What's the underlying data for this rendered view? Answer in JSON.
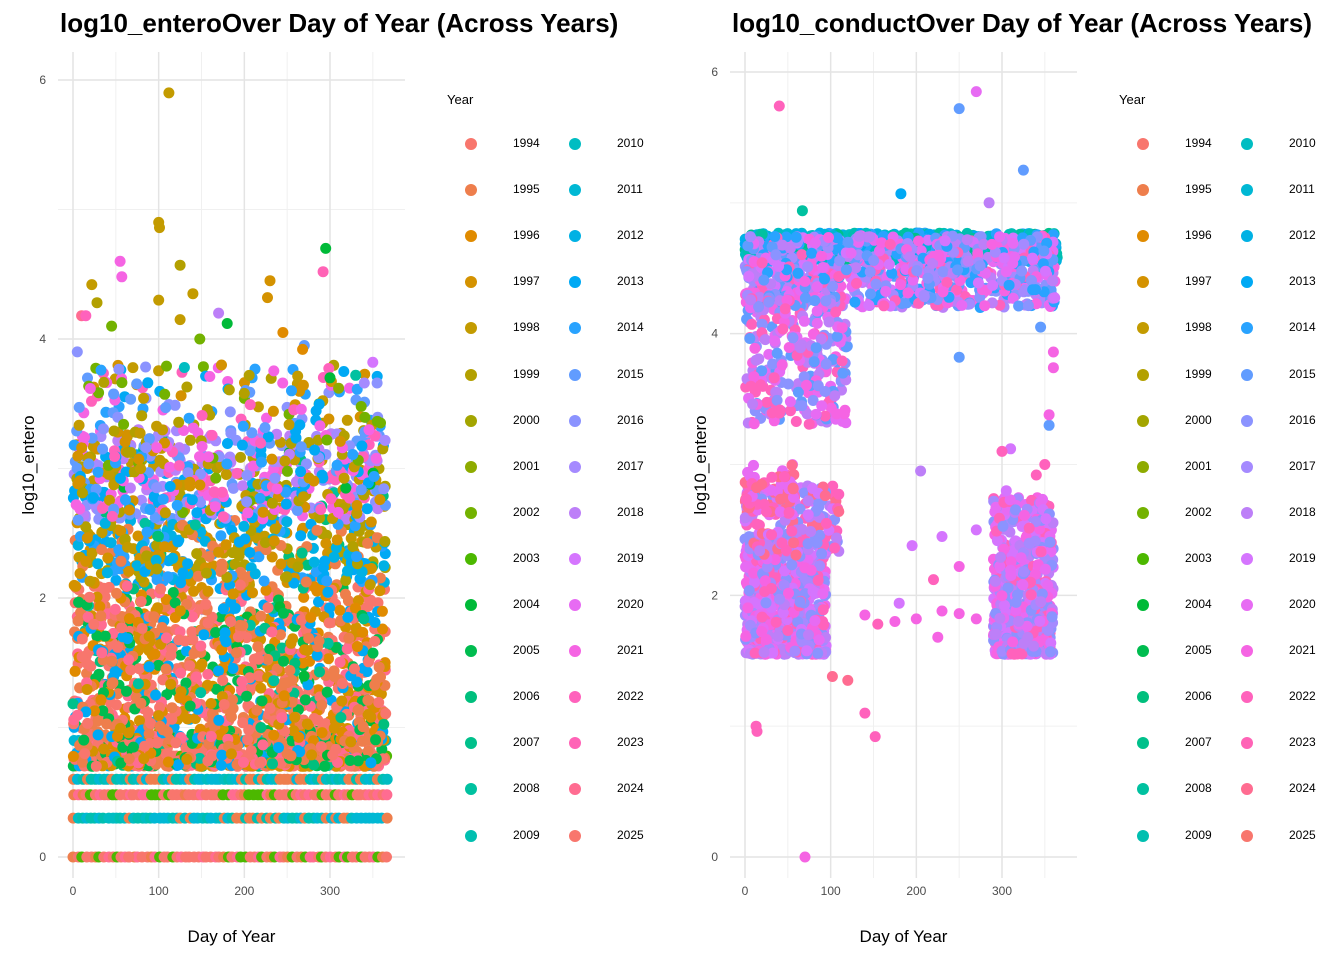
{
  "year_colors": {
    "1994": "#F8766D",
    "1995": "#EE7E4C",
    "1996": "#E08B00",
    "1997": "#D49200",
    "1998": "#C39B00",
    "1999": "#B3A000",
    "2000": "#A3A500",
    "2001": "#8EAB00",
    "2002": "#73B200",
    "2003": "#4CB800",
    "2004": "#00BA38",
    "2005": "#00BC4F",
    "2006": "#00BF7D",
    "2007": "#00C08B",
    "2008": "#00C1A0",
    "2009": "#00BFB0",
    "2010": "#00BDC2",
    "2011": "#00B8D4",
    "2012": "#00B1E4",
    "2013": "#00A9F4",
    "2014": "#29A3FF",
    "2015": "#619CFF",
    "2016": "#8B93FF",
    "2017": "#A58AFF",
    "2018": "#BD7FF8",
    "2019": "#D575FE",
    "2020": "#E76BF3",
    "2021": "#F564E3",
    "2022": "#FF62BC",
    "2023": "#FF63B6",
    "2024": "#FF6C91",
    "2025": "#F8766D"
  },
  "chart_data": [
    {
      "type": "scatter",
      "title": "log10_enteroOver Day of Year (Across Years)",
      "xlabel": "Day of Year",
      "ylabel": "log10_entero",
      "xlim": [
        -5,
        370
      ],
      "ylim": [
        -0.1,
        6.2
      ],
      "xticks": [
        0,
        100,
        200,
        300
      ],
      "yticks": [
        0,
        2,
        4,
        6
      ],
      "grid": true,
      "legend_title": "Year",
      "legend_placement": "right",
      "legend_years": [
        "1994",
        "1995",
        "1996",
        "1997",
        "1998",
        "1999",
        "2000",
        "2001",
        "2002",
        "2003",
        "2004",
        "2005",
        "2006",
        "2007",
        "2008",
        "2009",
        "2010",
        "2011",
        "2012",
        "2013",
        "2014",
        "2015",
        "2016",
        "2017",
        "2018",
        "2019",
        "2020",
        "2021",
        "2022",
        "2023",
        "2024",
        "2025"
      ],
      "points": [
        {
          "x": 112,
          "y": 5.9,
          "year": "1998"
        },
        {
          "x": 100,
          "y": 4.9,
          "year": "1998"
        },
        {
          "x": 101,
          "y": 4.86,
          "year": "1998"
        },
        {
          "x": 295,
          "y": 4.7,
          "year": "2004"
        },
        {
          "x": 292,
          "y": 4.52,
          "year": "2023"
        },
        {
          "x": 55,
          "y": 4.6,
          "year": "2021"
        },
        {
          "x": 57,
          "y": 4.48,
          "year": "2021"
        },
        {
          "x": 125,
          "y": 4.57,
          "year": "1999"
        },
        {
          "x": 230,
          "y": 4.45,
          "year": "1997"
        },
        {
          "x": 227,
          "y": 4.32,
          "year": "1997"
        },
        {
          "x": 22,
          "y": 4.42,
          "year": "1998"
        },
        {
          "x": 28,
          "y": 4.28,
          "year": "1999"
        },
        {
          "x": 140,
          "y": 4.35,
          "year": "1998"
        },
        {
          "x": 100,
          "y": 4.3,
          "year": "1998"
        },
        {
          "x": 10,
          "y": 4.18,
          "year": "2024"
        },
        {
          "x": 15,
          "y": 4.18,
          "year": "2022"
        },
        {
          "x": 180,
          "y": 4.12,
          "year": "2004"
        },
        {
          "x": 170,
          "y": 4.2,
          "year": "2018"
        },
        {
          "x": 125,
          "y": 4.15,
          "year": "1998"
        },
        {
          "x": 45,
          "y": 4.1,
          "year": "2002"
        },
        {
          "x": 245,
          "y": 4.05,
          "year": "1996"
        },
        {
          "x": 148,
          "y": 4.0,
          "year": "2002"
        },
        {
          "x": 270,
          "y": 3.95,
          "year": "2015"
        },
        {
          "x": 268,
          "y": 3.92,
          "year": "1996"
        },
        {
          "x": 350,
          "y": 3.82,
          "year": "2019"
        },
        {
          "x": 5,
          "y": 3.9,
          "year": "2016"
        },
        {
          "x": 130,
          "y": 3.78,
          "year": "2010"
        },
        {
          "x": 200,
          "y": 3.58,
          "year": "1999"
        },
        {
          "x": 255,
          "y": 3.6,
          "year": "2014"
        },
        {
          "x": 330,
          "y": 3.72,
          "year": "2008"
        },
        {
          "x": 300,
          "y": 3.7,
          "year": "2004"
        },
        {
          "x": 310,
          "y": 3.62,
          "year": "2001"
        },
        {
          "x": 340,
          "y": 3.66,
          "year": "2017"
        },
        {
          "x": 355,
          "y": 3.66,
          "year": "2016"
        },
        {
          "x": 65,
          "y": 0.0,
          "year": "2025"
        }
      ]
    },
    {
      "type": "scatter",
      "title": "log10_conductOver Day of Year (Across Years)",
      "xlabel": "Day of Year",
      "ylabel": "log10_entero",
      "xlim": [
        -5,
        370
      ],
      "ylim": [
        -0.1,
        6.2
      ],
      "xticks": [
        0,
        100,
        200,
        300
      ],
      "yticks": [
        0,
        2,
        4,
        6
      ],
      "grid": true,
      "legend_title": "Year",
      "legend_placement": "right",
      "legend_years": [
        "1994",
        "1995",
        "1996",
        "1997",
        "1998",
        "1999",
        "2000",
        "2001",
        "2002",
        "2003",
        "2004",
        "2005",
        "2006",
        "2007",
        "2008",
        "2009",
        "2010",
        "2011",
        "2012",
        "2013",
        "2014",
        "2015",
        "2016",
        "2017",
        "2018",
        "2019",
        "2020",
        "2021",
        "2022",
        "2023",
        "2024",
        "2025"
      ],
      "points": [
        {
          "x": 270,
          "y": 5.85,
          "year": "2020"
        },
        {
          "x": 40,
          "y": 5.74,
          "year": "2022"
        },
        {
          "x": 250,
          "y": 5.72,
          "year": "2015"
        },
        {
          "x": 325,
          "y": 5.25,
          "year": "2015"
        },
        {
          "x": 182,
          "y": 5.07,
          "year": "2013"
        },
        {
          "x": 285,
          "y": 5.0,
          "year": "2018"
        },
        {
          "x": 67,
          "y": 4.94,
          "year": "2008"
        },
        {
          "x": 250,
          "y": 3.82,
          "year": "2015"
        },
        {
          "x": 345,
          "y": 4.05,
          "year": "2015"
        },
        {
          "x": 355,
          "y": 3.3,
          "year": "2015"
        },
        {
          "x": 360,
          "y": 3.86,
          "year": "2021"
        },
        {
          "x": 360,
          "y": 3.74,
          "year": "2021"
        },
        {
          "x": 355,
          "y": 3.38,
          "year": "2021"
        },
        {
          "x": 350,
          "y": 3.0,
          "year": "2022"
        },
        {
          "x": 340,
          "y": 2.92,
          "year": "2022"
        },
        {
          "x": 310,
          "y": 3.12,
          "year": "2019"
        },
        {
          "x": 300,
          "y": 3.1,
          "year": "2022"
        },
        {
          "x": 305,
          "y": 2.8,
          "year": "2019"
        },
        {
          "x": 205,
          "y": 2.95,
          "year": "2018"
        },
        {
          "x": 270,
          "y": 2.5,
          "year": "2019"
        },
        {
          "x": 250,
          "y": 2.22,
          "year": "2021"
        },
        {
          "x": 230,
          "y": 2.45,
          "year": "2019"
        },
        {
          "x": 195,
          "y": 2.38,
          "year": "2019"
        },
        {
          "x": 220,
          "y": 2.12,
          "year": "2022"
        },
        {
          "x": 270,
          "y": 1.82,
          "year": "2021"
        },
        {
          "x": 250,
          "y": 1.86,
          "year": "2021"
        },
        {
          "x": 230,
          "y": 1.88,
          "year": "2021"
        },
        {
          "x": 200,
          "y": 1.82,
          "year": "2021"
        },
        {
          "x": 180,
          "y": 1.94,
          "year": "2019"
        },
        {
          "x": 175,
          "y": 1.8,
          "year": "2021"
        },
        {
          "x": 225,
          "y": 1.68,
          "year": "2021"
        },
        {
          "x": 155,
          "y": 1.78,
          "year": "2022"
        },
        {
          "x": 140,
          "y": 1.85,
          "year": "2021"
        },
        {
          "x": 102,
          "y": 1.38,
          "year": "2024"
        },
        {
          "x": 120,
          "y": 1.35,
          "year": "2024"
        },
        {
          "x": 140,
          "y": 1.1,
          "year": "2022"
        },
        {
          "x": 152,
          "y": 0.92,
          "year": "2022"
        },
        {
          "x": 13,
          "y": 1.0,
          "year": "2022"
        },
        {
          "x": 14,
          "y": 0.96,
          "year": "2022"
        },
        {
          "x": 70,
          "y": 0.0,
          "year": "2021"
        }
      ]
    }
  ]
}
